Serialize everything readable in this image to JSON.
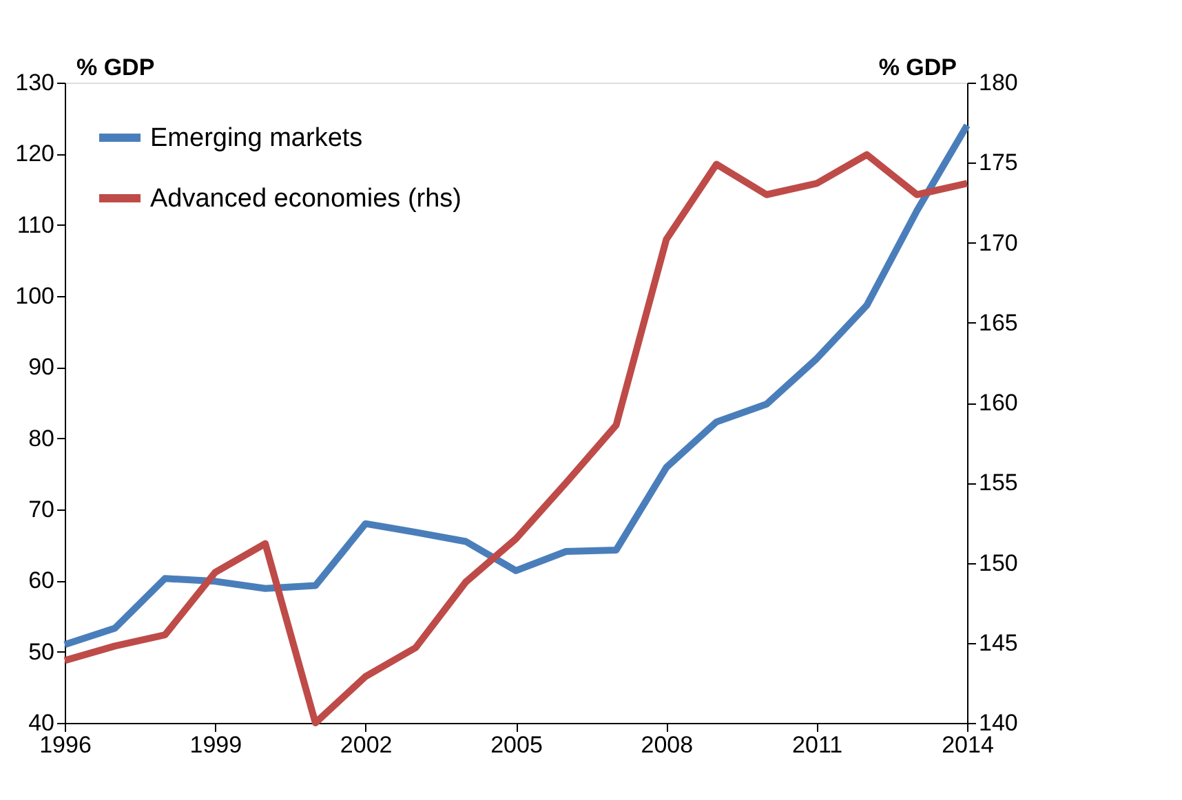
{
  "chart_data": {
    "type": "line",
    "ylabel": "% GDP",
    "y2label": "% GDP",
    "x": [
      1996,
      1997,
      1998,
      1999,
      2000,
      2001,
      2002,
      2003,
      2004,
      2005,
      2006,
      2007,
      2008,
      2009,
      2010,
      2011,
      2012,
      2013,
      2014
    ],
    "series": [
      {
        "name": "Emerging markets",
        "color": "#4a7ebb",
        "values": [
          51,
          53.3,
          60.3,
          59.9,
          58.9,
          59.3,
          68,
          66.8,
          65.5,
          61.4,
          64.1,
          64.3,
          75.9,
          82.3,
          84.8,
          91.2,
          98.7,
          112,
          124
        ]
      },
      {
        "name": "Advanced economies (rhs)",
        "color": "#be4b48",
        "axis": "y2",
        "values": [
          143.9,
          144.8,
          145.5,
          149.4,
          151.2,
          140,
          142.9,
          144.7,
          148.8,
          151.5,
          155,
          158.6,
          170.2,
          174.9,
          173,
          173.7,
          175.5,
          173,
          173.7
        ]
      }
    ],
    "xlim": [
      1996,
      2014
    ],
    "xticks": [
      1996,
      1999,
      2002,
      2005,
      2008,
      2011,
      2014
    ],
    "ylim": [
      40,
      130
    ],
    "yticks": [
      40,
      50,
      60,
      70,
      80,
      90,
      100,
      110,
      120,
      130
    ],
    "y2lim": [
      140,
      180
    ],
    "y2ticks": [
      140,
      145,
      150,
      155,
      160,
      165,
      170,
      175,
      180
    ],
    "grid": false,
    "legend": "top left",
    "marker": "none",
    "line_style": "solid"
  }
}
